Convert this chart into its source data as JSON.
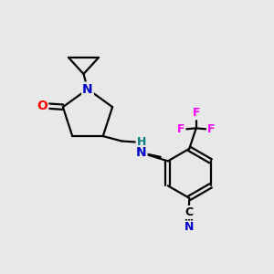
{
  "background_color": "#e8e8e8",
  "bond_color": "#000000",
  "bond_width": 1.6,
  "colors": {
    "C": "#000000",
    "N": "#0000cc",
    "O": "#ff0000",
    "F": "#ff00ff",
    "NH": "#008080"
  },
  "font_size_atom": 10,
  "font_size_small": 9,
  "font_size_cn": 9
}
